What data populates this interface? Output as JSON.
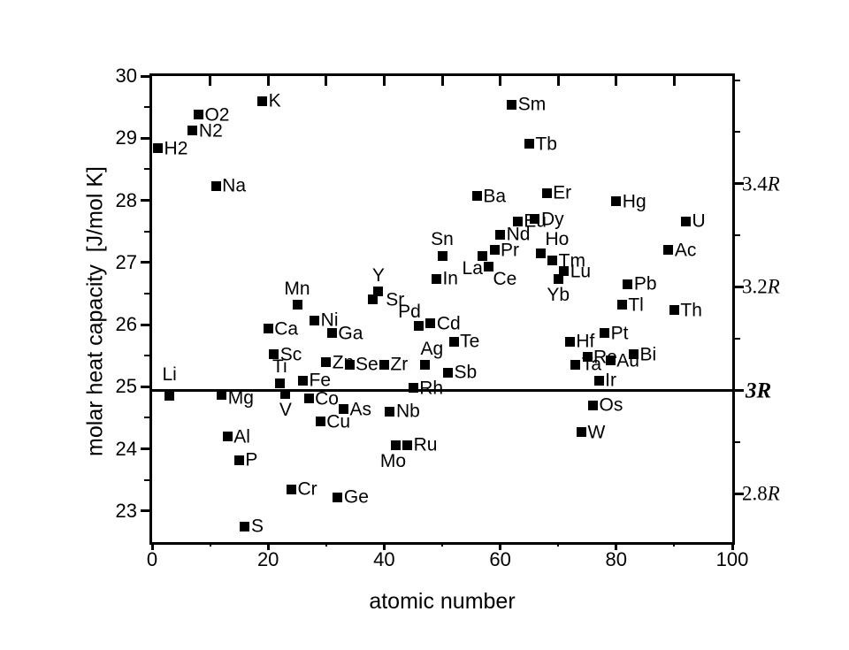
{
  "figure": {
    "background": "#ffffff",
    "ink_color": "#000000"
  },
  "chart_data": {
    "type": "scatter",
    "title": "",
    "xlabel": "atomic number",
    "ylabel": "molar heat capacity  [J/mol K]",
    "xlim": [
      0,
      100
    ],
    "ylim": [
      22.5,
      30
    ],
    "grid": "off",
    "legend": "none",
    "marker": "filled-black-square",
    "x_major_ticks": [
      0,
      20,
      40,
      60,
      80,
      100
    ],
    "x_minor_ticks": [
      10,
      30,
      50,
      70,
      90
    ],
    "x_top_inner_ticks": [
      10,
      20,
      30,
      40,
      50,
      60,
      70,
      80,
      90
    ],
    "y_major_ticks": [
      23,
      24,
      25,
      26,
      27,
      28,
      29,
      30
    ],
    "y_minor_ticks": [
      23.5,
      24.5,
      25.5,
      26.5,
      27.5,
      28.5,
      29.5
    ],
    "right_axis_ticks": [
      {
        "value": 29.93
      },
      {
        "value": 29.1
      },
      {
        "value": 28.27,
        "label_num": "3.4",
        "label_r": "R"
      },
      {
        "value": 27.44
      },
      {
        "value": 26.61,
        "label_num": "3.2",
        "label_r": "R"
      },
      {
        "value": 25.78
      },
      {
        "value": 24.94,
        "label_num": "3",
        "label_r": "R",
        "bold": true
      },
      {
        "value": 24.11
      },
      {
        "value": 23.28,
        "label_num": "2.8",
        "label_r": "R"
      }
    ],
    "reference_line": {
      "value": 24.94,
      "label": "3R"
    },
    "points": [
      {
        "label": "H2",
        "z": 1,
        "cp": 28.84,
        "anchor": "r"
      },
      {
        "label": "Li",
        "z": 3,
        "cp": 24.86,
        "anchor": "t",
        "dy": -5
      },
      {
        "label": "N2",
        "z": 7,
        "cp": 29.12,
        "anchor": "r"
      },
      {
        "label": "O2",
        "z": 8,
        "cp": 29.38,
        "anchor": "r"
      },
      {
        "label": "Na",
        "z": 11,
        "cp": 28.23,
        "anchor": "r"
      },
      {
        "label": "Mg",
        "z": 12,
        "cp": 24.87,
        "anchor": "r",
        "dy": 4
      },
      {
        "label": "Al",
        "z": 13,
        "cp": 24.2,
        "anchor": "r"
      },
      {
        "label": "P",
        "z": 15,
        "cp": 23.82,
        "anchor": "r"
      },
      {
        "label": "S",
        "z": 16,
        "cp": 22.75,
        "anchor": "r"
      },
      {
        "label": "K",
        "z": 19,
        "cp": 29.6,
        "anchor": "r"
      },
      {
        "label": "Ca",
        "z": 20,
        "cp": 25.93,
        "anchor": "r"
      },
      {
        "label": "Sc",
        "z": 21,
        "cp": 25.52,
        "anchor": "r"
      },
      {
        "label": "Ti",
        "z": 22,
        "cp": 25.06,
        "anchor": "t"
      },
      {
        "label": "V",
        "z": 23,
        "cp": 24.89,
        "anchor": "b"
      },
      {
        "label": "Cr",
        "z": 24,
        "cp": 23.35,
        "anchor": "r"
      },
      {
        "label": "Mn",
        "z": 25,
        "cp": 26.32,
        "anchor": "t"
      },
      {
        "label": "Fe",
        "z": 26,
        "cp": 25.1,
        "anchor": "r"
      },
      {
        "label": "Co",
        "z": 27,
        "cp": 24.81,
        "anchor": "r"
      },
      {
        "label": "Ni",
        "z": 28,
        "cp": 26.07,
        "anchor": "r"
      },
      {
        "label": "Cu",
        "z": 29,
        "cp": 24.44,
        "anchor": "r"
      },
      {
        "label": "Zn",
        "z": 30,
        "cp": 25.39,
        "anchor": "r"
      },
      {
        "label": "Ga",
        "z": 31,
        "cp": 25.86,
        "anchor": "r"
      },
      {
        "label": "Ge",
        "z": 32,
        "cp": 23.22,
        "anchor": "r"
      },
      {
        "label": "As",
        "z": 33,
        "cp": 24.64,
        "anchor": "r"
      },
      {
        "label": "Se",
        "z": 34,
        "cp": 25.36,
        "anchor": "r"
      },
      {
        "label": "Sr",
        "z": 38,
        "cp": 26.4,
        "anchor": "r",
        "dx": 8
      },
      {
        "label": "Y",
        "z": 39,
        "cp": 26.53,
        "anchor": "t"
      },
      {
        "label": "Zr",
        "z": 40,
        "cp": 25.36,
        "anchor": "r"
      },
      {
        "label": "Nb",
        "z": 41,
        "cp": 24.6,
        "anchor": "r"
      },
      {
        "label": "Mo",
        "z": 42,
        "cp": 24.06,
        "anchor": "b",
        "dx": -3
      },
      {
        "label": "Ru",
        "z": 44,
        "cp": 24.06,
        "anchor": "r"
      },
      {
        "label": "Rh",
        "z": 45,
        "cp": 24.98,
        "anchor": "r"
      },
      {
        "label": "Pd",
        "z": 46,
        "cp": 25.98,
        "anchor": "tl"
      },
      {
        "label": "Ag",
        "z": 47,
        "cp": 25.35,
        "anchor": "t",
        "dx": 8
      },
      {
        "label": "Cd",
        "z": 48,
        "cp": 26.02,
        "anchor": "r"
      },
      {
        "label": "In",
        "z": 49,
        "cp": 26.74,
        "anchor": "r"
      },
      {
        "label": "Sn",
        "z": 50,
        "cp": 27.11,
        "anchor": "t"
      },
      {
        "label": "Sb",
        "z": 51,
        "cp": 25.23,
        "anchor": "r"
      },
      {
        "label": "Te",
        "z": 52,
        "cp": 25.73,
        "anchor": "r"
      },
      {
        "label": "Ba",
        "z": 56,
        "cp": 28.07,
        "anchor": "r"
      },
      {
        "label": "La",
        "z": 57,
        "cp": 27.11,
        "anchor": "bl"
      },
      {
        "label": "Ce",
        "z": 58,
        "cp": 26.94,
        "anchor": "br"
      },
      {
        "label": "Pr",
        "z": 59,
        "cp": 27.2,
        "anchor": "r"
      },
      {
        "label": "Nd",
        "z": 60,
        "cp": 27.45,
        "anchor": "r"
      },
      {
        "label": "Sm",
        "z": 62,
        "cp": 29.54,
        "anchor": "r"
      },
      {
        "label": "Eu",
        "z": 63,
        "cp": 27.66,
        "anchor": "r"
      },
      {
        "label": "Tb",
        "z": 65,
        "cp": 28.91,
        "anchor": "r"
      },
      {
        "label": "Dy",
        "z": 66,
        "cp": 27.7,
        "anchor": "r"
      },
      {
        "label": "Ho",
        "z": 67,
        "cp": 27.15,
        "anchor": "tr",
        "dx": 2
      },
      {
        "label": "Er",
        "z": 68,
        "cp": 28.12,
        "anchor": "r"
      },
      {
        "label": "Tm",
        "z": 69,
        "cp": 27.03,
        "anchor": "r"
      },
      {
        "label": "Yb",
        "z": 70,
        "cp": 26.74,
        "anchor": "b"
      },
      {
        "label": "Lu",
        "z": 71,
        "cp": 26.86,
        "anchor": "r"
      },
      {
        "label": "Hf",
        "z": 72,
        "cp": 25.73,
        "anchor": "r"
      },
      {
        "label": "Ta",
        "z": 73,
        "cp": 25.36,
        "anchor": "r"
      },
      {
        "label": "W",
        "z": 74,
        "cp": 24.27,
        "anchor": "r"
      },
      {
        "label": "Re",
        "z": 75,
        "cp": 25.48,
        "anchor": "r"
      },
      {
        "label": "Os",
        "z": 76,
        "cp": 24.7,
        "anchor": "r"
      },
      {
        "label": "Ir",
        "z": 77,
        "cp": 25.1,
        "anchor": "r"
      },
      {
        "label": "Pt",
        "z": 78,
        "cp": 25.86,
        "anchor": "r"
      },
      {
        "label": "Au",
        "z": 79,
        "cp": 25.42,
        "anchor": "r"
      },
      {
        "label": "Hg",
        "z": 80,
        "cp": 27.98,
        "anchor": "r"
      },
      {
        "label": "Tl",
        "z": 81,
        "cp": 26.32,
        "anchor": "r"
      },
      {
        "label": "Pb",
        "z": 82,
        "cp": 26.65,
        "anchor": "r"
      },
      {
        "label": "Bi",
        "z": 83,
        "cp": 25.52,
        "anchor": "r"
      },
      {
        "label": "Ac",
        "z": 89,
        "cp": 27.2,
        "anchor": "r"
      },
      {
        "label": "Th",
        "z": 90,
        "cp": 26.23,
        "anchor": "r"
      },
      {
        "label": "U",
        "z": 92,
        "cp": 27.66,
        "anchor": "r"
      }
    ]
  }
}
